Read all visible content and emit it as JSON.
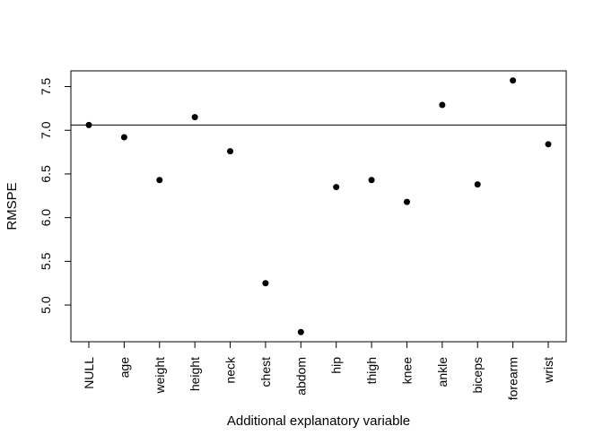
{
  "chart_data": {
    "type": "scatter",
    "title": "",
    "xlabel": "Additional explanatory variable",
    "ylabel": "RMSPE",
    "categories": [
      "NULL",
      "age",
      "weight",
      "height",
      "neck",
      "chest",
      "abdom",
      "hip",
      "thigh",
      "knee",
      "ankle",
      "biceps",
      "forearm",
      "wrist"
    ],
    "values": [
      7.06,
      6.92,
      6.43,
      7.15,
      6.76,
      5.25,
      4.69,
      6.35,
      6.43,
      6.18,
      7.29,
      6.38,
      7.57,
      6.84
    ],
    "ylim": [
      4.58,
      7.68
    ],
    "yticks": [
      5.0,
      5.5,
      6.0,
      6.5,
      7.0,
      7.5
    ],
    "ytick_labels": [
      "5.0",
      "5.5",
      "6.0",
      "6.5",
      "7.0",
      "7.5"
    ],
    "reference_line": 7.06,
    "grid": false,
    "point_color": "#000000",
    "axis_color": "#000000"
  }
}
